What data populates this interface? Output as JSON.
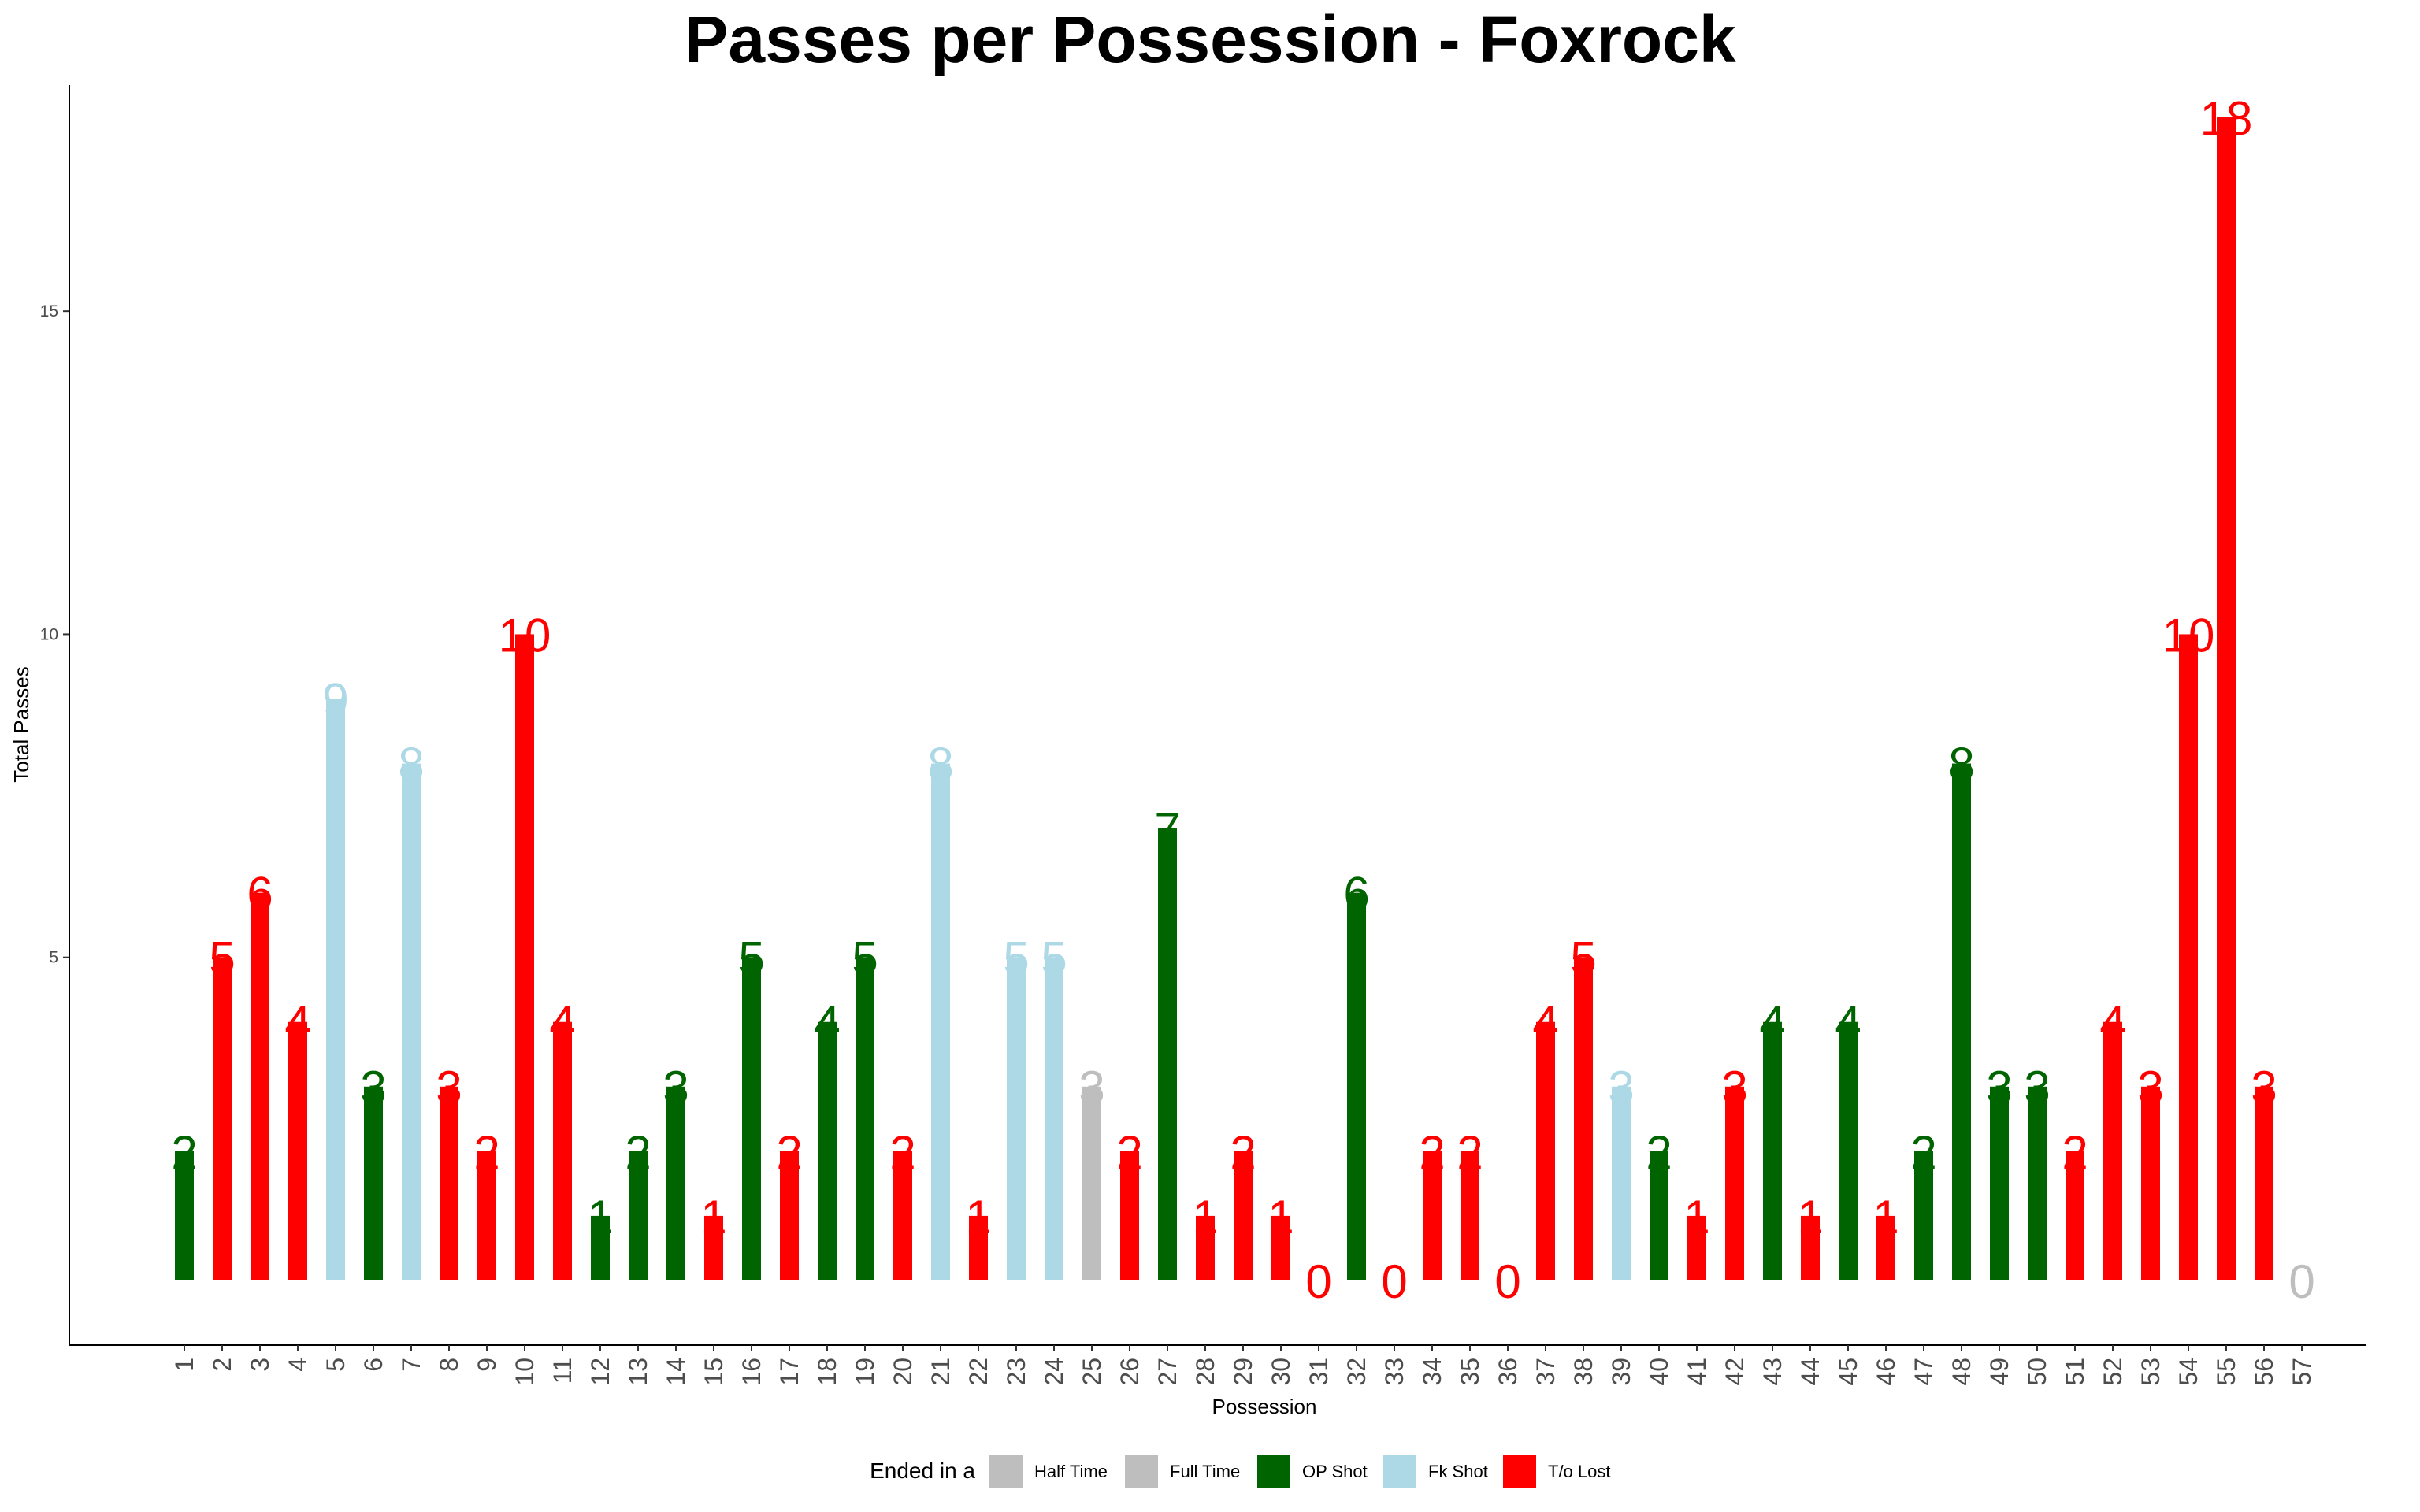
{
  "chart_data": {
    "type": "bar",
    "title": "Passes per Possession - Foxrock",
    "xlabel": "Possession",
    "ylabel": "Total Passes",
    "ylim": [
      -1,
      18.5
    ],
    "yticks": [
      5,
      10,
      15
    ],
    "grid": false,
    "legend": {
      "placement": "bottom",
      "title": "Ended in a",
      "entries": [
        {
          "key": "ht",
          "label": "Half Time",
          "color": "#bebebe"
        },
        {
          "key": "ft",
          "label": "Full Time",
          "color": "#bebebe"
        },
        {
          "key": "op",
          "label": "OP Shot",
          "color": "#006400"
        },
        {
          "key": "fk",
          "label": "Fk Shot",
          "color": "#add8e6"
        },
        {
          "key": "to",
          "label": "T/o Lost",
          "color": "#ff0000"
        }
      ]
    },
    "categories": [
      "1",
      "2",
      "3",
      "4",
      "5",
      "6",
      "7",
      "8",
      "9",
      "10",
      "11",
      "12",
      "13",
      "14",
      "15",
      "16",
      "17",
      "18",
      "19",
      "20",
      "21",
      "22",
      "23",
      "24",
      "25",
      "26",
      "27",
      "28",
      "29",
      "30",
      "31",
      "32",
      "33",
      "34",
      "35",
      "36",
      "37",
      "38",
      "39",
      "40",
      "41",
      "42",
      "43",
      "44",
      "45",
      "46",
      "47",
      "48",
      "49",
      "50",
      "51",
      "52",
      "53",
      "54",
      "55",
      "56",
      "57"
    ],
    "values": [
      2,
      5,
      6,
      4,
      9,
      3,
      8,
      3,
      2,
      10,
      4,
      1,
      2,
      3,
      1,
      5,
      2,
      4,
      5,
      2,
      8,
      1,
      5,
      5,
      3,
      2,
      7,
      1,
      2,
      1,
      0,
      6,
      0,
      2,
      2,
      0,
      4,
      5,
      3,
      2,
      1,
      3,
      4,
      1,
      4,
      1,
      2,
      8,
      3,
      3,
      2,
      4,
      3,
      10,
      18,
      3,
      0
    ],
    "outcome": [
      "op",
      "to",
      "to",
      "to",
      "fk",
      "op",
      "fk",
      "to",
      "to",
      "to",
      "to",
      "op",
      "op",
      "op",
      "to",
      "op",
      "to",
      "op",
      "op",
      "to",
      "fk",
      "to",
      "fk",
      "fk",
      "ht",
      "to",
      "op",
      "to",
      "to",
      "to",
      "to",
      "op",
      "to",
      "to",
      "to",
      "to",
      "to",
      "to",
      "fk",
      "op",
      "to",
      "to",
      "op",
      "to",
      "op",
      "to",
      "op",
      "op",
      "op",
      "op",
      "to",
      "to",
      "to",
      "to",
      "to",
      "to",
      "ft"
    ]
  }
}
